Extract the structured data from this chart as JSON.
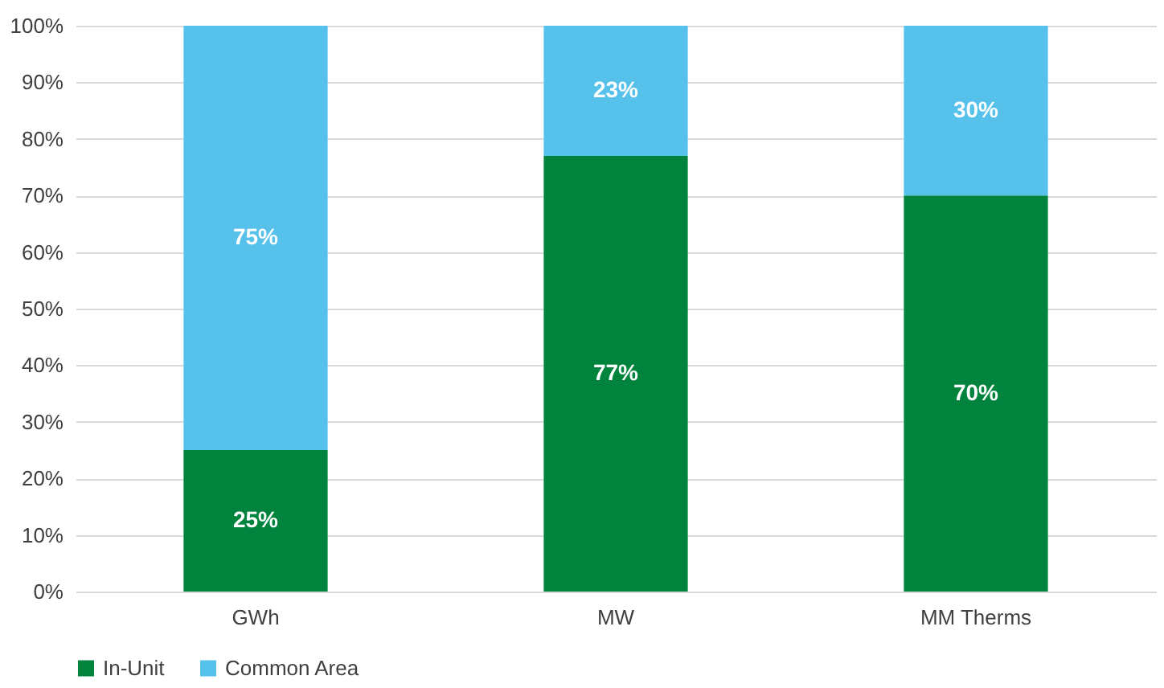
{
  "chart_data": {
    "type": "bar",
    "stacked": true,
    "categories": [
      "GWh",
      "MW",
      "MM Therms"
    ],
    "series": [
      {
        "name": "In-Unit",
        "color": "#00843d",
        "values": [
          25,
          77,
          70
        ],
        "value_labels": [
          "25%",
          "77%",
          "70%"
        ]
      },
      {
        "name": "Common Area",
        "color": "#56c1ea",
        "values": [
          75,
          23,
          30
        ],
        "value_labels": [
          "75%",
          "23%",
          "30%"
        ]
      }
    ],
    "ylim": [
      0,
      100
    ],
    "yticks": [
      {
        "value": 0,
        "label": "0%"
      },
      {
        "value": 10,
        "label": "10%"
      },
      {
        "value": 20,
        "label": "20%"
      },
      {
        "value": 30,
        "label": "30%"
      },
      {
        "value": 40,
        "label": "40%"
      },
      {
        "value": 50,
        "label": "50%"
      },
      {
        "value": 60,
        "label": "60%"
      },
      {
        "value": 70,
        "label": "70%"
      },
      {
        "value": 80,
        "label": "80%"
      },
      {
        "value": 90,
        "label": "90%"
      },
      {
        "value": 100,
        "label": "100%"
      }
    ],
    "grid": "y",
    "legend": "bottom"
  }
}
